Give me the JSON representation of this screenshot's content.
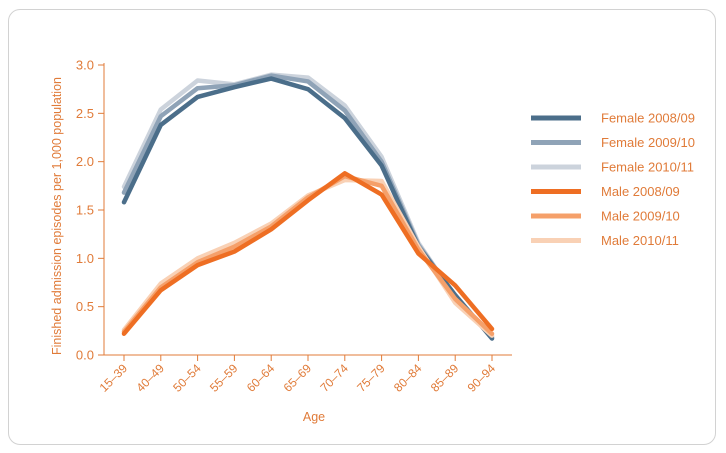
{
  "chart_data": {
    "type": "line",
    "title": "",
    "xlabel": "Age",
    "ylabel": "Finished admission episodes per 1,000 population",
    "ylim": [
      0,
      3.0
    ],
    "yticks": [
      "0.0",
      "0.5",
      "1.0",
      "1.5",
      "2.0",
      "2.5",
      "3.0"
    ],
    "yticks_values": [
      0,
      0.5,
      1.0,
      1.5,
      2.0,
      2.5,
      3.0
    ],
    "categories": [
      "15–39",
      "40–49",
      "50–54",
      "55–59",
      "60–64",
      "65–69",
      "70–74",
      "75–79",
      "80–84",
      "85–89",
      "90–94"
    ],
    "grid": false,
    "legend_position": "right",
    "axis_color": "#e07b39",
    "series": [
      {
        "name": "Female 2008/09",
        "color": "#4b6e8a",
        "values": [
          1.58,
          2.38,
          2.67,
          2.77,
          2.86,
          2.75,
          2.45,
          1.96,
          1.12,
          0.62,
          0.17
        ]
      },
      {
        "name": "Female 2009/10",
        "color": "#8fa3b7",
        "values": [
          1.68,
          2.47,
          2.76,
          2.79,
          2.89,
          2.83,
          2.53,
          2.0,
          1.14,
          0.61,
          0.18
        ]
      },
      {
        "name": "Female 2010/11",
        "color": "#ccd3dc",
        "values": [
          1.74,
          2.54,
          2.84,
          2.8,
          2.9,
          2.87,
          2.58,
          2.05,
          1.16,
          0.6,
          0.19
        ]
      },
      {
        "name": "Male 2008/09",
        "color": "#ee6e23",
        "values": [
          0.22,
          0.67,
          0.93,
          1.07,
          1.3,
          1.6,
          1.88,
          1.66,
          1.05,
          0.72,
          0.27
        ]
      },
      {
        "name": "Male 2009/10",
        "color": "#f5a06a",
        "values": [
          0.24,
          0.7,
          0.96,
          1.12,
          1.33,
          1.63,
          1.85,
          1.75,
          1.09,
          0.58,
          0.22
        ]
      },
      {
        "name": "Male 2010/11",
        "color": "#f9d1b5",
        "values": [
          0.26,
          0.74,
          1.0,
          1.16,
          1.36,
          1.65,
          1.81,
          1.8,
          1.12,
          0.54,
          0.2
        ]
      }
    ]
  }
}
